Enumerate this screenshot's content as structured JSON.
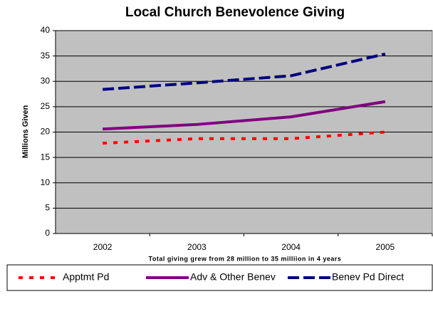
{
  "chart_data": {
    "type": "line",
    "title": "Local Church Benevolence Giving",
    "y_label": "Millions Given",
    "x_label": "Total giving grew from 28 million to 35 milliion in 4 years",
    "categories": [
      "2002",
      "2003",
      "2004",
      "2005"
    ],
    "series": [
      {
        "name": "Apptmt Pd",
        "color": "#ff0000",
        "dash": "dotted",
        "values": [
          17.8,
          18.7,
          18.7,
          20.0
        ]
      },
      {
        "name": "Adv & Other Benev",
        "color": "#800080",
        "dash": "solid",
        "values": [
          20.6,
          21.5,
          23.0,
          26.0
        ]
      },
      {
        "name": "Benev Pd Direct",
        "color": "#000080",
        "dash": "dashed",
        "values": [
          28.4,
          29.7,
          31.1,
          35.4
        ]
      }
    ],
    "ylim": [
      0,
      40
    ],
    "yticks": [
      0,
      5,
      10,
      15,
      20,
      25,
      30,
      35,
      40
    ],
    "grid": true,
    "plot_background": "#c0c0c0",
    "legend": "bottom"
  }
}
